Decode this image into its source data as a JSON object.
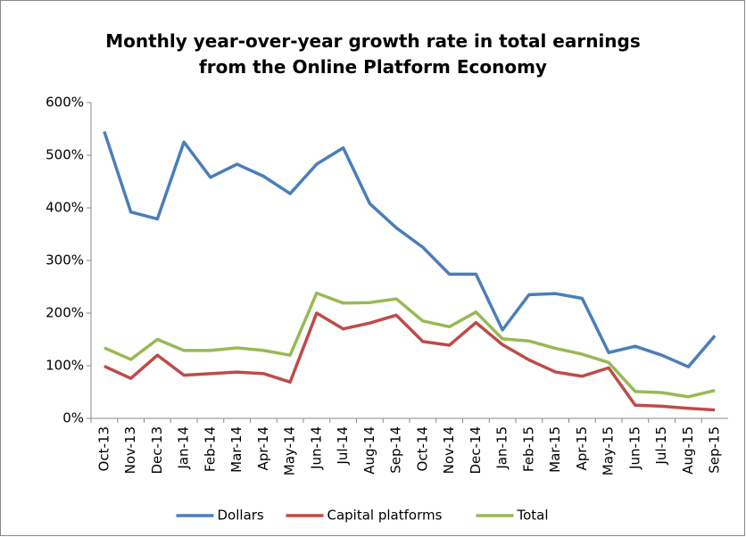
{
  "chart_data": {
    "type": "line",
    "title": "Monthly year-over-year growth rate in total earnings from the Online Platform Economy",
    "categories": [
      "Oct-13",
      "Nov-13",
      "Dec-13",
      "Jan-14",
      "Feb-14",
      "Mar-14",
      "Apr-14",
      "May-14",
      "Jun-14",
      "Jul-14",
      "Aug-14",
      "Sep-14",
      "Oct-14",
      "Nov-14",
      "Dec-14",
      "Jan-15",
      "Feb-15",
      "Mar-15",
      "Apr-15",
      "May-15",
      "Jun-15",
      "Jul-15",
      "Aug-15",
      "Sep-15"
    ],
    "series": [
      {
        "name": "Dollars",
        "color": "#4a7ebb",
        "values": [
          545,
          392,
          379,
          525,
          458,
          483,
          460,
          427,
          483,
          514,
          408,
          362,
          325,
          274,
          274,
          168,
          235,
          237,
          228,
          125,
          137,
          120,
          98,
          157
        ]
      },
      {
        "name": "Capital platforms",
        "color": "#be4b48",
        "values": [
          99,
          76,
          120,
          82,
          85,
          88,
          85,
          69,
          200,
          170,
          181,
          196,
          146,
          139,
          182,
          140,
          111,
          88,
          80,
          96,
          25,
          23,
          19,
          16
        ]
      },
      {
        "name": "Total",
        "color": "#98b954",
        "values": [
          134,
          112,
          150,
          129,
          129,
          134,
          129,
          120,
          238,
          219,
          220,
          227,
          185,
          174,
          202,
          151,
          147,
          133,
          122,
          106,
          51,
          49,
          41,
          53
        ]
      }
    ],
    "ylim": [
      0,
      600
    ],
    "yticks": [
      {
        "value": 0,
        "label": "0%"
      },
      {
        "value": 100,
        "label": "100%"
      },
      {
        "value": 200,
        "label": "200%"
      },
      {
        "value": 300,
        "label": "300%"
      },
      {
        "value": 400,
        "label": "400%"
      },
      {
        "value": 500,
        "label": "500%"
      },
      {
        "value": 600,
        "label": "600%"
      }
    ],
    "legend": "bottom"
  }
}
